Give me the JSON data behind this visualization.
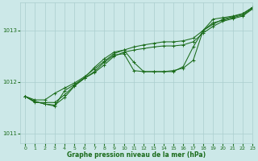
{
  "title": "Graphe pression niveau de la mer (hPa)",
  "bg_color": "#cce8e8",
  "grid_color": "#aacece",
  "line_color": "#1a6b1a",
  "marker_color": "#1a6b1a",
  "xlim": [
    -0.5,
    23
  ],
  "ylim": [
    1010.8,
    1013.55
  ],
  "yticks": [
    1011,
    1012,
    1013
  ],
  "xticks": [
    0,
    1,
    2,
    3,
    4,
    5,
    6,
    7,
    8,
    9,
    10,
    11,
    12,
    13,
    14,
    15,
    16,
    17,
    18,
    19,
    20,
    21,
    22,
    23
  ],
  "line1": [
    1011.72,
    1011.65,
    1011.65,
    1011.78,
    1011.88,
    1011.98,
    1012.1,
    1012.25,
    1012.4,
    1012.55,
    1012.62,
    1012.68,
    1012.72,
    1012.75,
    1012.78,
    1012.78,
    1012.8,
    1012.85,
    1013.0,
    1013.12,
    1013.22,
    1013.27,
    1013.32,
    1013.45
  ],
  "line2": [
    1011.72,
    1011.6,
    1011.6,
    1011.6,
    1011.75,
    1011.93,
    1012.07,
    1012.18,
    1012.33,
    1012.5,
    1012.58,
    1012.62,
    1012.65,
    1012.68,
    1012.7,
    1012.7,
    1012.72,
    1012.78,
    1012.95,
    1013.08,
    1013.18,
    1013.23,
    1013.28,
    1013.42
  ],
  "line3": [
    1011.72,
    1011.62,
    1011.57,
    1011.55,
    1011.7,
    1011.92,
    1012.07,
    1012.2,
    1012.38,
    1012.52,
    1012.55,
    1012.22,
    1012.2,
    1012.2,
    1012.2,
    1012.22,
    1012.27,
    1012.42,
    1013.0,
    1013.15,
    1013.2,
    1013.25,
    1013.3,
    1013.43
  ],
  "line4": [
    1011.72,
    1011.62,
    1011.57,
    1011.53,
    1011.83,
    1011.95,
    1012.08,
    1012.28,
    1012.45,
    1012.58,
    1012.62,
    1012.38,
    1012.2,
    1012.2,
    1012.2,
    1012.2,
    1012.3,
    1012.68,
    1013.0,
    1013.22,
    1013.25,
    1013.28,
    1013.33,
    1013.45
  ]
}
